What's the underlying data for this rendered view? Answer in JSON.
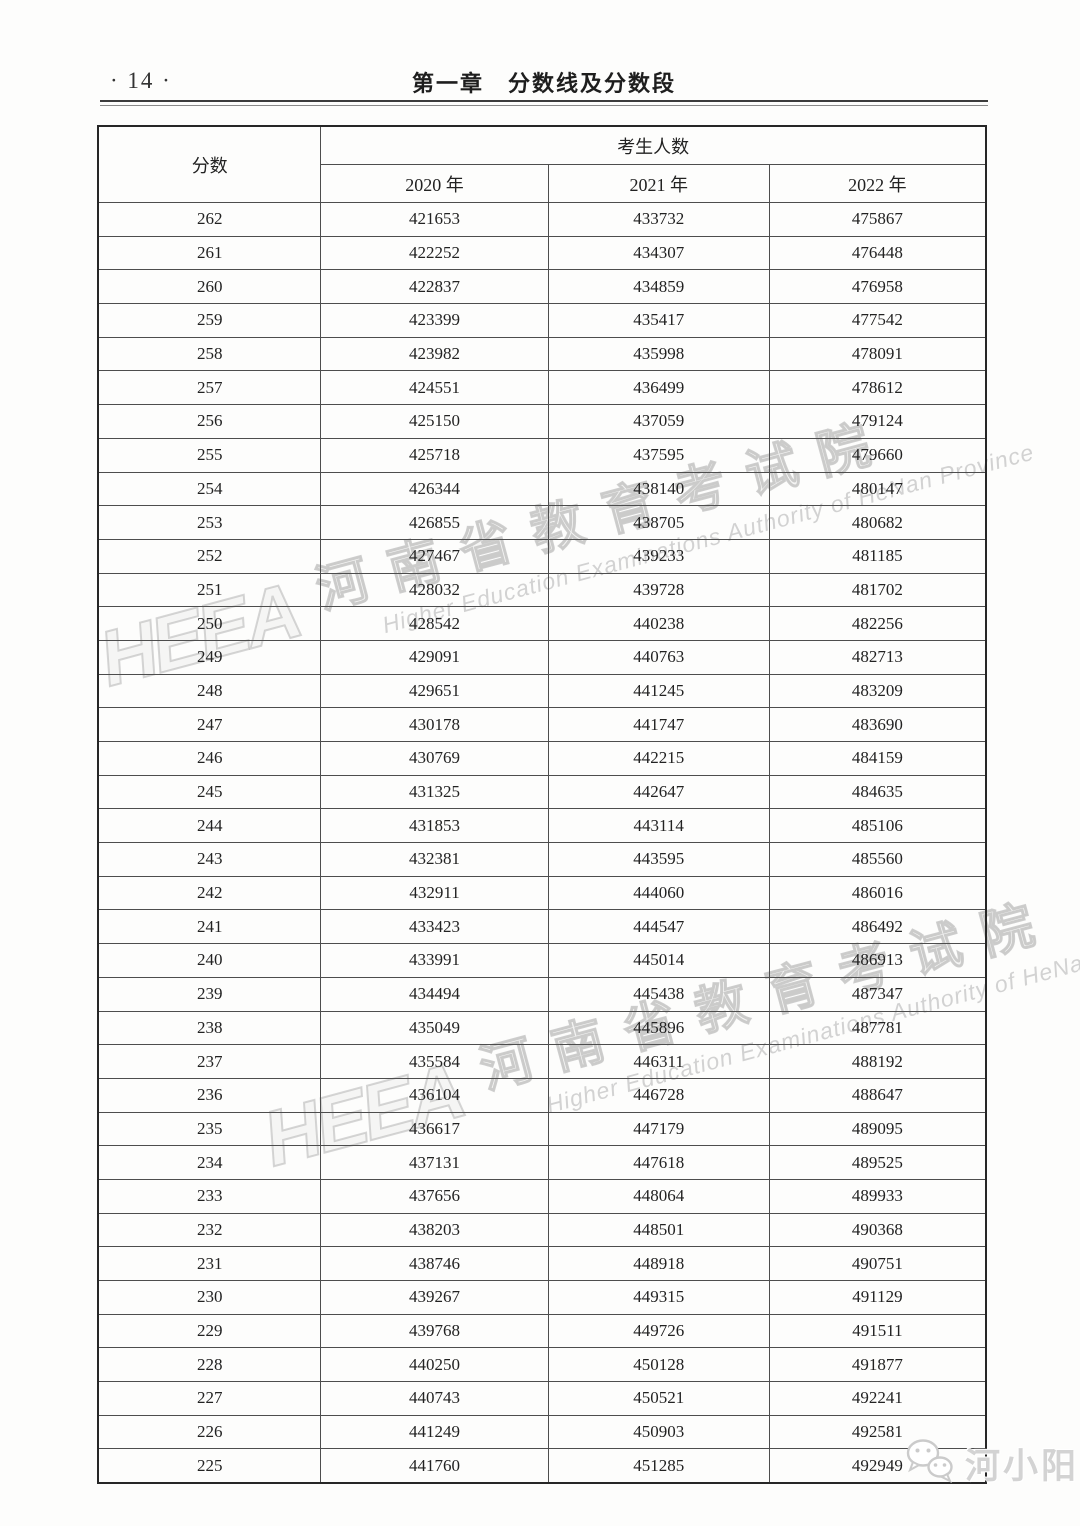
{
  "page": {
    "number": "· 14 ·",
    "chapter_title": "第一章　分数线及分数段"
  },
  "table": {
    "score_header": "分数",
    "group_header": "考生人数",
    "year_headers": [
      "2020 年",
      "2021 年",
      "2022 年"
    ],
    "rows": [
      [
        262,
        421653,
        433732,
        475867
      ],
      [
        261,
        422252,
        434307,
        476448
      ],
      [
        260,
        422837,
        434859,
        476958
      ],
      [
        259,
        423399,
        435417,
        477542
      ],
      [
        258,
        423982,
        435998,
        478091
      ],
      [
        257,
        424551,
        436499,
        478612
      ],
      [
        256,
        425150,
        437059,
        479124
      ],
      [
        255,
        425718,
        437595,
        479660
      ],
      [
        254,
        426344,
        438140,
        480147
      ],
      [
        253,
        426855,
        438705,
        480682
      ],
      [
        252,
        427467,
        439233,
        481185
      ],
      [
        251,
        428032,
        439728,
        481702
      ],
      [
        250,
        428542,
        440238,
        482256
      ],
      [
        249,
        429091,
        440763,
        482713
      ],
      [
        248,
        429651,
        441245,
        483209
      ],
      [
        247,
        430178,
        441747,
        483690
      ],
      [
        246,
        430769,
        442215,
        484159
      ],
      [
        245,
        431325,
        442647,
        484635
      ],
      [
        244,
        431853,
        443114,
        485106
      ],
      [
        243,
        432381,
        443595,
        485560
      ],
      [
        242,
        432911,
        444060,
        486016
      ],
      [
        241,
        433423,
        444547,
        486492
      ],
      [
        240,
        433991,
        445014,
        486913
      ],
      [
        239,
        434494,
        445438,
        487347
      ],
      [
        238,
        435049,
        445896,
        487781
      ],
      [
        237,
        435584,
        446311,
        488192
      ],
      [
        236,
        436104,
        446728,
        488647
      ],
      [
        235,
        436617,
        447179,
        489095
      ],
      [
        234,
        437131,
        447618,
        489525
      ],
      [
        233,
        437656,
        448064,
        489933
      ],
      [
        232,
        438203,
        448501,
        490368
      ],
      [
        231,
        438746,
        448918,
        490751
      ],
      [
        230,
        439267,
        449315,
        491129
      ],
      [
        229,
        439768,
        449726,
        491511
      ],
      [
        228,
        440250,
        450128,
        491877
      ],
      [
        227,
        440743,
        450521,
        492241
      ],
      [
        226,
        441249,
        450903,
        492581
      ],
      [
        225,
        441760,
        451285,
        492949
      ]
    ]
  },
  "watermark": {
    "logo": "HEEA",
    "cn": "河南省教育考试院",
    "en": "Higher Education Examinations Authority of HeNan Province"
  },
  "account_watermark": {
    "label": "河小阳"
  },
  "colors": {
    "table_border": "#262626",
    "watermark_gray": "#aaaaaa",
    "account_gray": "#d3d3d3"
  }
}
